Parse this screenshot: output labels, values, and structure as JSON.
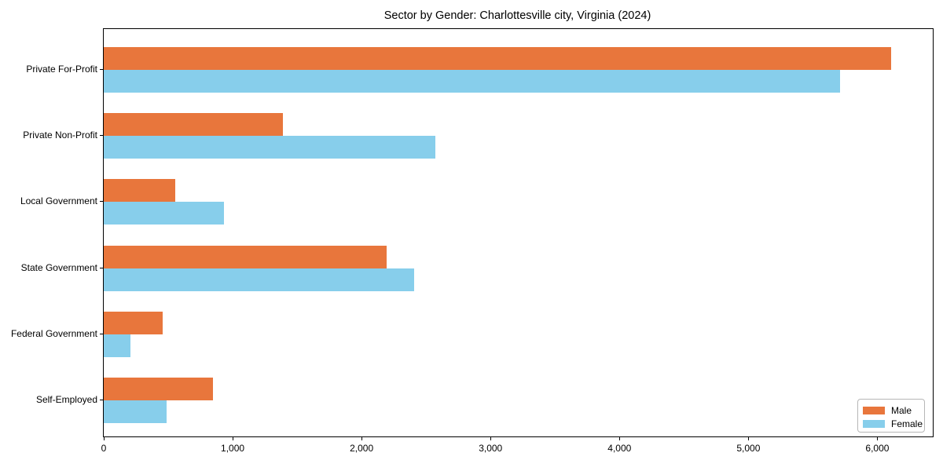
{
  "chart_data": {
    "type": "bar",
    "orientation": "horizontal",
    "title": "Sector by Gender: Charlottesville city, Virginia (2024)",
    "categories": [
      "Private For-Profit",
      "Private Non-Profit",
      "Local Government",
      "State Government",
      "Federal Government",
      "Self-Employed"
    ],
    "series": [
      {
        "name": "Male",
        "color": "#e8763c",
        "values": [
          6110,
          1390,
          555,
          2195,
          460,
          850
        ]
      },
      {
        "name": "Female",
        "color": "#87ceeb",
        "values": [
          5710,
          2575,
          930,
          2410,
          210,
          490
        ]
      }
    ],
    "xlim": [
      0,
      6430
    ],
    "xticks": [
      0,
      1000,
      2000,
      3000,
      4000,
      5000,
      6000
    ],
    "xtick_labels": [
      "0",
      "1,000",
      "2,000",
      "3,000",
      "4,000",
      "5,000",
      "6,000"
    ],
    "xlabel": "",
    "ylabel": "",
    "grid": false,
    "legend_position": "lower right"
  },
  "colors": {
    "male": "#e8763c",
    "female": "#87ceeb",
    "axis": "#000000",
    "background": "#ffffff",
    "legend_border": "#b7b7b7"
  }
}
